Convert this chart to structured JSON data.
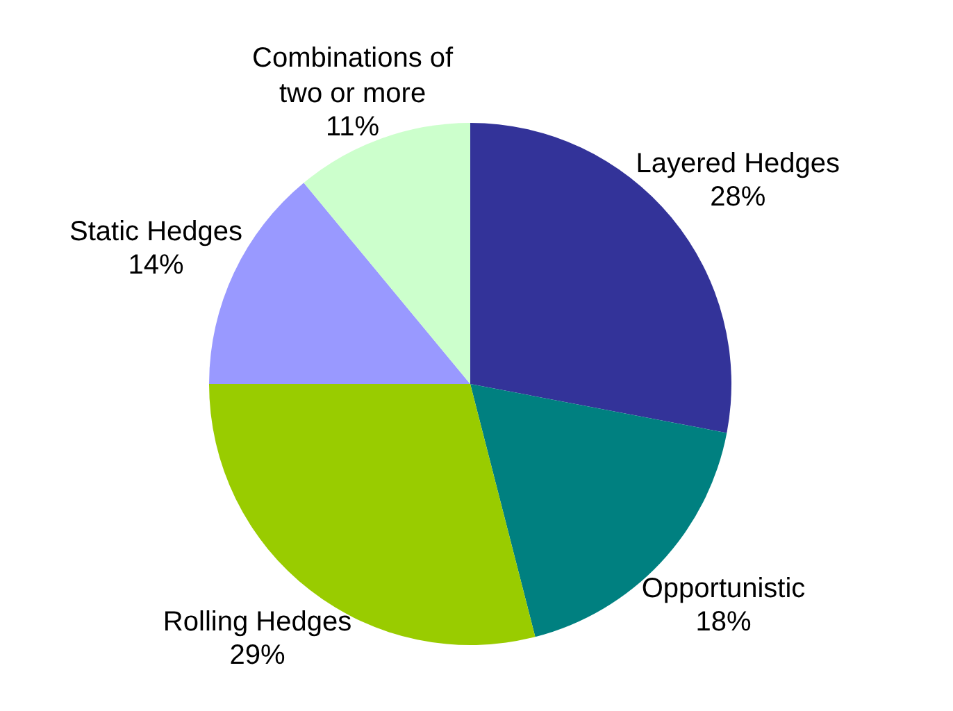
{
  "chart_data": {
    "type": "pie",
    "categories": [
      "Layered Hedges",
      "Opportunistic",
      "Rolling Hedges",
      "Static Hedges",
      "Combinations of two or more"
    ],
    "values": [
      28,
      18,
      29,
      14,
      11
    ],
    "value_labels": [
      "28%",
      "18%",
      "29%",
      "14%",
      "11%"
    ],
    "colors": [
      "#333399",
      "#008080",
      "#99cc00",
      "#9999ff",
      "#ccffcc"
    ]
  }
}
